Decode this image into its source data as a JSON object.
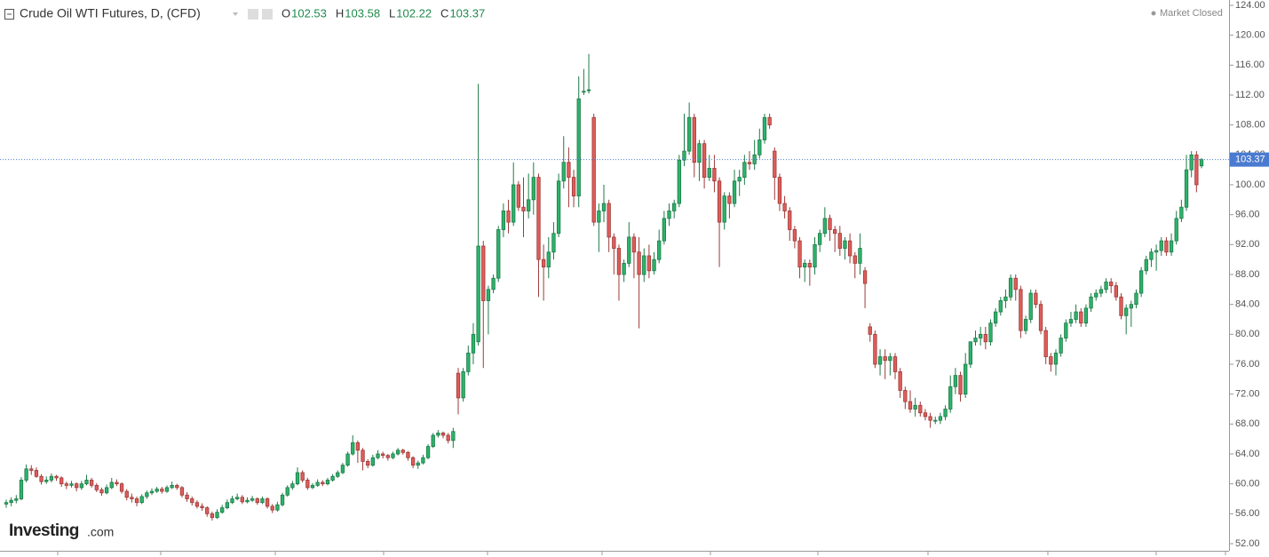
{
  "chart_data": {
    "type": "candlestick",
    "title": "Crude Oil WTI Futures, D, (CFD)",
    "ohlc_labels": [
      "O",
      "H",
      "L",
      "C"
    ],
    "status": "Market Closed",
    "logo": {
      "name": "Investing",
      "suffix": ".com"
    },
    "up_color": "#2db36b",
    "down_color": "#e05d5a",
    "price_line_color": "#4a7bd0",
    "ylim": [
      52,
      124
    ],
    "yticks": [
      {
        "value": 52,
        "label": "52.00"
      },
      {
        "value": 56,
        "label": "56.00"
      },
      {
        "value": 60,
        "label": "60.00"
      },
      {
        "value": 64,
        "label": "64.00"
      },
      {
        "value": 68,
        "label": "68.00"
      },
      {
        "value": 72,
        "label": "72.00"
      },
      {
        "value": 76,
        "label": "76.00"
      },
      {
        "value": 80,
        "label": "80.00"
      },
      {
        "value": 84,
        "label": "84.00"
      },
      {
        "value": 88,
        "label": "88.00"
      },
      {
        "value": 92,
        "label": "92.00"
      },
      {
        "value": 96,
        "label": "96.00"
      },
      {
        "value": 100,
        "label": "100.00"
      },
      {
        "value": 104,
        "label": "104.00"
      },
      {
        "value": 108,
        "label": "108.00"
      },
      {
        "value": 112,
        "label": "112.00"
      },
      {
        "value": 116,
        "label": "116.00"
      },
      {
        "value": 120,
        "label": "120.00"
      },
      {
        "value": 124,
        "label": "124.00"
      }
    ],
    "ohlc": [
      [
        57.3,
        57.9,
        56.8,
        57.5
      ],
      [
        57.5,
        58.2,
        57,
        57.8
      ],
      [
        57.8,
        58.5,
        57.4,
        58
      ],
      [
        58,
        60.9,
        57.8,
        60.5
      ],
      [
        60.5,
        62.6,
        60.2,
        62
      ],
      [
        62,
        62.5,
        61.2,
        61.8
      ],
      [
        61.8,
        62.2,
        60.8,
        61
      ],
      [
        61,
        61.3,
        59.9,
        60.3
      ],
      [
        60.3,
        61,
        60,
        60.5
      ],
      [
        60.5,
        61.4,
        60.2,
        61
      ],
      [
        61,
        61.2,
        60.4,
        60.8
      ],
      [
        60.8,
        61,
        59.6,
        60
      ],
      [
        60,
        60.3,
        59.3,
        59.8
      ],
      [
        59.8,
        60.4,
        59.5,
        60
      ],
      [
        60,
        60.2,
        59,
        59.5
      ],
      [
        59.5,
        60.4,
        59.2,
        60
      ],
      [
        60,
        61.2,
        59.8,
        60.5
      ],
      [
        60.5,
        60.8,
        59.5,
        59.8
      ],
      [
        59.8,
        60.1,
        58.9,
        59.2
      ],
      [
        59.2,
        59.5,
        58.4,
        58.8
      ],
      [
        58.8,
        59.9,
        58.6,
        59.5
      ],
      [
        59.5,
        60.8,
        59.3,
        60.2
      ],
      [
        60.2,
        60.6,
        59.7,
        60
      ],
      [
        60,
        60.2,
        58.7,
        59
      ],
      [
        59,
        59.3,
        57.8,
        58.2
      ],
      [
        58.2,
        58.7,
        57.5,
        58
      ],
      [
        58,
        58.3,
        57,
        57.5
      ],
      [
        57.5,
        58.6,
        57.3,
        58.3
      ],
      [
        58.3,
        59.1,
        58,
        58.8
      ],
      [
        58.8,
        59.4,
        58.5,
        59
      ],
      [
        59,
        59.6,
        58.8,
        59.3
      ],
      [
        59.3,
        59.6,
        58.7,
        59
      ],
      [
        59,
        59.8,
        58.8,
        59.5
      ],
      [
        59.5,
        60.3,
        59.3,
        59.8
      ],
      [
        59.8,
        60,
        59.2,
        59.5
      ],
      [
        59.5,
        59.7,
        58.2,
        58.5
      ],
      [
        58.5,
        58.9,
        57.6,
        58
      ],
      [
        58,
        58.3,
        57.1,
        57.5
      ],
      [
        57.5,
        57.8,
        56.7,
        57
      ],
      [
        57,
        57.4,
        56.4,
        56.8
      ],
      [
        56.8,
        57,
        55.6,
        56
      ],
      [
        56,
        56.3,
        55.1,
        55.5
      ],
      [
        55.5,
        56.6,
        55.3,
        56.2
      ],
      [
        56.2,
        57.2,
        56,
        56.8
      ],
      [
        56.8,
        57.9,
        56.6,
        57.5
      ],
      [
        57.5,
        58.4,
        57.3,
        58
      ],
      [
        58,
        58.7,
        57.8,
        58.2
      ],
      [
        58.2,
        58.5,
        57.3,
        57.6
      ],
      [
        57.6,
        58.2,
        57.4,
        57.8
      ],
      [
        57.8,
        58.4,
        57.6,
        58
      ],
      [
        58,
        58.2,
        57.2,
        57.5
      ],
      [
        57.5,
        58.3,
        57.3,
        58
      ],
      [
        58,
        58.2,
        56.7,
        57
      ],
      [
        57,
        57.3,
        56.1,
        56.5
      ],
      [
        56.5,
        57.6,
        56.3,
        57.2
      ],
      [
        57.2,
        58.8,
        57,
        58.5
      ],
      [
        58.5,
        59.8,
        58.3,
        59.5
      ],
      [
        59.5,
        60.4,
        59.2,
        60
      ],
      [
        60,
        62.2,
        59.8,
        61.5
      ],
      [
        61.5,
        61.8,
        60.2,
        60.5
      ],
      [
        60.5,
        60.8,
        59.2,
        59.5
      ],
      [
        59.5,
        60.1,
        59.3,
        59.8
      ],
      [
        59.8,
        60.6,
        59.6,
        60.2
      ],
      [
        60.2,
        60.5,
        59.7,
        60
      ],
      [
        60,
        60.8,
        59.8,
        60.5
      ],
      [
        60.5,
        61.3,
        60.3,
        61
      ],
      [
        61,
        61.8,
        60.8,
        61.5
      ],
      [
        61.5,
        62.8,
        61.3,
        62.5
      ],
      [
        62.5,
        64.3,
        62.3,
        64
      ],
      [
        64,
        66.5,
        63.8,
        65.5
      ],
      [
        65.5,
        65.8,
        62.8,
        64.5
      ],
      [
        64.5,
        64.8,
        61.8,
        63
      ],
      [
        63,
        63.3,
        62.1,
        62.5
      ],
      [
        62.5,
        63.9,
        62.3,
        63.5
      ],
      [
        63.5,
        64.5,
        63.3,
        64
      ],
      [
        64,
        64.3,
        63.4,
        63.8
      ],
      [
        63.8,
        64,
        63.1,
        63.5
      ],
      [
        63.5,
        64.3,
        63.3,
        64
      ],
      [
        64,
        64.8,
        63.8,
        64.5
      ],
      [
        64.5,
        64.7,
        63.9,
        64.2
      ],
      [
        64.2,
        64.4,
        63.1,
        63.5
      ],
      [
        63.5,
        63.7,
        62.1,
        62.5
      ],
      [
        62.5,
        63.1,
        62,
        62.8
      ],
      [
        62.8,
        63.9,
        62.6,
        63.5
      ],
      [
        63.5,
        65.3,
        63.3,
        65
      ],
      [
        65,
        66.8,
        64.8,
        66.5
      ],
      [
        66.5,
        67.2,
        66.2,
        66.8
      ],
      [
        66.8,
        67,
        66.1,
        66.5
      ],
      [
        66.5,
        66.8,
        65.4,
        65.8
      ],
      [
        65.8,
        67.5,
        64.8,
        67
      ],
      [
        74.8,
        75.5,
        69.3,
        71.5
      ],
      [
        71.5,
        75.5,
        71,
        75
      ],
      [
        75,
        78.5,
        74.5,
        77.5
      ],
      [
        77.5,
        81.5,
        76,
        80
      ],
      [
        79,
        113.5,
        78.5,
        91.8
      ],
      [
        91.8,
        92.5,
        75.5,
        84.5
      ],
      [
        84.5,
        86.5,
        80,
        86
      ],
      [
        86,
        88,
        85.5,
        87.5
      ],
      [
        87.5,
        94.5,
        87,
        94
      ],
      [
        94,
        97.5,
        93,
        96.5
      ],
      [
        96.5,
        98,
        93.5,
        95
      ],
      [
        95,
        103,
        94.5,
        100
      ],
      [
        100,
        100.5,
        96.5,
        97
      ],
      [
        97,
        101,
        93,
        96.5
      ],
      [
        96.5,
        101.5,
        95.5,
        98
      ],
      [
        98,
        103,
        96,
        101
      ],
      [
        101,
        101.5,
        85,
        90
      ],
      [
        90,
        92,
        84.5,
        89
      ],
      [
        89,
        93,
        87.5,
        91
      ],
      [
        91,
        95,
        90,
        93.5
      ],
      [
        93.5,
        101.5,
        93,
        100.5
      ],
      [
        100.5,
        106.5,
        99.5,
        103
      ],
      [
        103,
        105,
        97,
        101
      ],
      [
        101,
        102,
        97,
        98.5
      ],
      [
        98.5,
        114.5,
        97,
        111.5
      ],
      [
        112.5,
        115.5,
        112,
        112.5
      ],
      [
        112.7,
        117.5,
        112.2,
        112.7
      ],
      [
        109,
        109.5,
        94.5,
        95
      ],
      [
        95,
        97.5,
        91,
        96.5
      ],
      [
        96.5,
        100,
        95,
        97.5
      ],
      [
        97.5,
        98,
        91,
        93
      ],
      [
        93,
        93.5,
        88,
        91.5
      ],
      [
        91.5,
        92,
        84.5,
        88
      ],
      [
        88,
        90,
        87,
        89.5
      ],
      [
        89.5,
        95,
        89,
        93
      ],
      [
        93,
        93.5,
        87.5,
        91
      ],
      [
        91,
        93,
        80.8,
        88
      ],
      [
        88,
        91.5,
        87,
        90.5
      ],
      [
        90.5,
        92,
        87.5,
        88.5
      ],
      [
        88.5,
        91,
        88,
        90
      ],
      [
        90,
        94,
        89.5,
        92.5
      ],
      [
        92.5,
        96.5,
        92,
        95.5
      ],
      [
        95.5,
        97.5,
        94.5,
        96.5
      ],
      [
        96.5,
        98,
        95.5,
        97.5
      ],
      [
        97.5,
        104,
        97,
        103.3
      ],
      [
        103.3,
        109.5,
        102.5,
        104.5
      ],
      [
        104.5,
        111,
        104,
        109
      ],
      [
        109,
        109.5,
        101,
        103
      ],
      [
        103,
        106,
        100.5,
        105.5
      ],
      [
        105.5,
        106,
        99.5,
        101
      ],
      [
        101,
        104,
        100.5,
        102.2
      ],
      [
        102.2,
        104,
        99,
        100.5
      ],
      [
        100.5,
        101,
        89,
        95
      ],
      [
        95,
        99,
        94,
        98.5
      ],
      [
        98.5,
        99,
        95.5,
        97.5
      ],
      [
        97.5,
        102,
        97,
        100.5
      ],
      [
        100.5,
        102,
        98.5,
        101
      ],
      [
        101,
        104,
        100,
        103
      ],
      [
        103,
        104.5,
        102,
        102.8
      ],
      [
        102.8,
        106,
        102,
        104
      ],
      [
        104,
        107.5,
        103.5,
        106
      ],
      [
        106,
        109.5,
        105.5,
        109
      ],
      [
        109,
        109.5,
        107.5,
        108
      ],
      [
        104.5,
        105,
        98,
        101
      ],
      [
        101,
        101.5,
        96.5,
        97.5
      ],
      [
        97.5,
        98.5,
        95.5,
        96.5
      ],
      [
        96.5,
        97,
        92.5,
        94
      ],
      [
        94,
        94.5,
        91.5,
        92.5
      ],
      [
        92.5,
        93,
        87.5,
        89
      ],
      [
        89,
        90,
        87,
        89.5
      ],
      [
        89.5,
        90,
        86.5,
        89
      ],
      [
        89,
        93,
        88,
        92
      ],
      [
        92,
        94,
        91,
        93.5
      ],
      [
        93.5,
        97,
        93,
        95.5
      ],
      [
        95.5,
        96,
        92.5,
        94
      ],
      [
        94,
        94.5,
        91,
        93.5
      ],
      [
        93.5,
        94.5,
        90.5,
        91.5
      ],
      [
        91.5,
        93,
        90,
        92.5
      ],
      [
        92.5,
        93.5,
        89.5,
        90.5
      ],
      [
        90.5,
        91,
        87.5,
        89.5
      ],
      [
        89.5,
        93.5,
        88,
        91.5
      ],
      [
        88.5,
        89,
        83.5,
        86.8
      ],
      [
        81,
        81.5,
        79,
        80
      ],
      [
        80,
        80.5,
        75.5,
        76
      ],
      [
        76,
        78,
        74.5,
        77
      ],
      [
        77,
        78,
        74,
        76.5
      ],
      [
        76.5,
        77.5,
        74.5,
        77
      ],
      [
        77,
        77.5,
        74,
        75
      ],
      [
        75,
        75.5,
        71.5,
        72.5
      ],
      [
        72.5,
        73,
        70,
        71
      ],
      [
        71,
        72.5,
        69.5,
        70
      ],
      [
        70,
        71.5,
        69,
        70.5
      ],
      [
        70.5,
        71,
        69,
        69.5
      ],
      [
        69.5,
        70,
        68.5,
        69
      ],
      [
        69,
        69.5,
        67.5,
        68.5
      ],
      [
        68.5,
        69,
        68,
        68.5
      ],
      [
        68.5,
        69.5,
        68,
        69
      ],
      [
        69,
        70.5,
        68.5,
        70
      ],
      [
        70,
        74.5,
        69.5,
        73
      ],
      [
        73,
        75.5,
        72,
        74.5
      ],
      [
        74.5,
        75,
        71,
        72
      ],
      [
        72,
        77.5,
        71.5,
        76
      ],
      [
        76,
        79,
        75.5,
        79
      ],
      [
        79,
        80.5,
        78.5,
        79.5
      ],
      [
        79.5,
        81,
        78.5,
        80
      ],
      [
        80,
        81,
        78,
        79
      ],
      [
        79,
        82,
        78.5,
        81.5
      ],
      [
        81.5,
        83.5,
        81,
        83
      ],
      [
        83,
        85,
        82.5,
        84.5
      ],
      [
        84.5,
        86,
        83.5,
        85
      ],
      [
        85,
        88,
        84.5,
        87.5
      ],
      [
        87.5,
        88,
        84.5,
        86
      ],
      [
        86,
        86.5,
        79.5,
        80.5
      ],
      [
        80.5,
        82.5,
        80,
        82
      ],
      [
        82,
        86,
        81.5,
        85.5
      ],
      [
        85.5,
        86,
        83.5,
        84
      ],
      [
        84,
        84.5,
        80,
        80.5
      ],
      [
        80.5,
        81,
        76,
        77
      ],
      [
        77,
        77.5,
        75,
        76
      ],
      [
        76,
        78,
        74.5,
        77.5
      ],
      [
        77.5,
        80,
        77,
        79.5
      ],
      [
        79.5,
        82,
        79,
        81.5
      ],
      [
        81.5,
        83,
        81,
        82
      ],
      [
        82,
        84,
        81.5,
        83
      ],
      [
        83,
        83.5,
        81,
        81.5
      ],
      [
        81.5,
        84,
        81,
        83.5
      ],
      [
        83.5,
        85.5,
        83,
        85
      ],
      [
        85,
        86,
        84.5,
        85.5
      ],
      [
        85.5,
        86.5,
        85,
        86
      ],
      [
        86,
        87.5,
        85.5,
        87
      ],
      [
        87,
        87.5,
        85.5,
        86.5
      ],
      [
        86.5,
        87,
        84.5,
        85
      ],
      [
        85,
        85.5,
        82,
        82.5
      ],
      [
        82.5,
        84,
        80,
        83.5
      ],
      [
        83.5,
        84.5,
        81,
        84
      ],
      [
        84,
        86,
        83.5,
        85.5
      ],
      [
        85.5,
        89,
        85,
        88.5
      ],
      [
        88.5,
        90.5,
        88,
        90
      ],
      [
        90,
        91.5,
        89,
        91
      ],
      [
        91,
        92,
        88.5,
        91.2
      ],
      [
        91.2,
        93,
        90.5,
        92.5
      ],
      [
        92.5,
        93,
        90.5,
        91
      ],
      [
        91,
        93.5,
        90.5,
        92.5
      ],
      [
        92.5,
        96.5,
        92,
        95.5
      ],
      [
        95.5,
        98,
        95,
        97
      ],
      [
        97,
        104,
        96.5,
        102
      ],
      [
        102,
        104.5,
        101,
        104
      ],
      [
        104,
        104.5,
        99,
        100
      ],
      [
        102.53,
        103.58,
        102.22,
        103.37
      ]
    ]
  }
}
